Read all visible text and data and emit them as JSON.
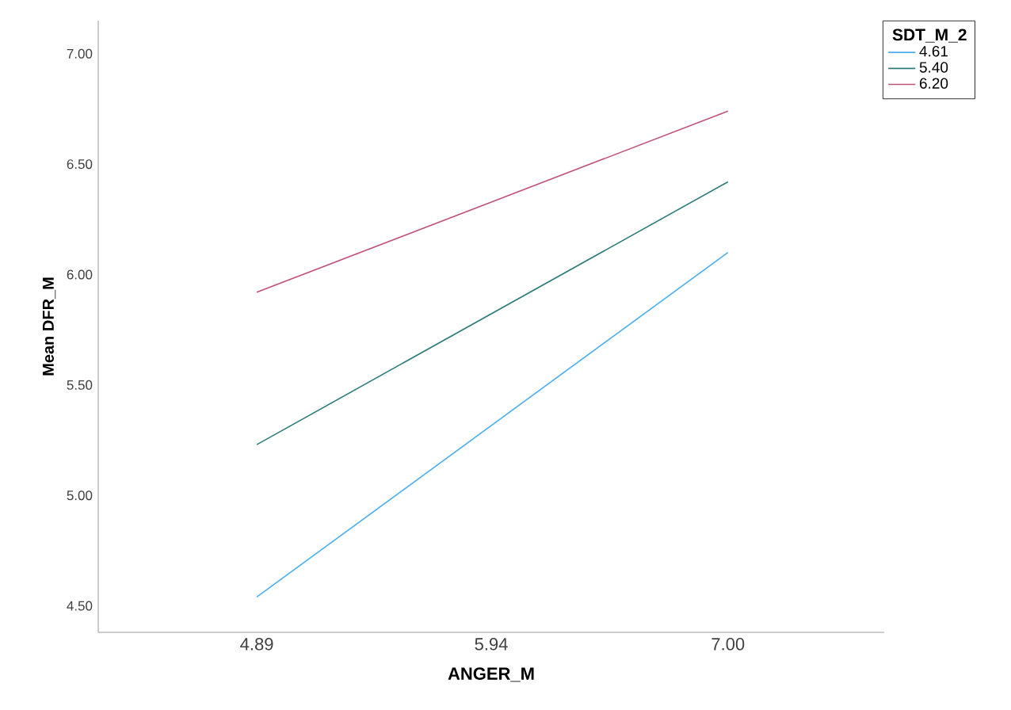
{
  "chart_data": {
    "type": "line",
    "xlabel": "ANGER_M",
    "ylabel": "Mean DFR_M",
    "legend_title": "SDT_M_2",
    "legend": "top right",
    "grid": false,
    "line_style": "solid",
    "x": [
      4.89,
      7.0
    ],
    "xlim": [
      4.18,
      7.7
    ],
    "xticks": [
      4.89,
      5.94,
      {
        "value": 7,
        "label": "7.00"
      }
    ],
    "ylim": [
      4.38,
      7.15
    ],
    "yticks": [
      {
        "value": 4.5,
        "label": "4.50"
      },
      {
        "value": 5,
        "label": "5.00"
      },
      {
        "value": 5.5,
        "label": "5.50"
      },
      {
        "value": 6,
        "label": "6.00"
      },
      {
        "value": 6.5,
        "label": "6.50"
      },
      {
        "value": 7,
        "label": "7.00"
      }
    ],
    "series": [
      {
        "name": "4.61",
        "color": "#4aaeee",
        "values": [
          4.54,
          6.1
        ]
      },
      {
        "name": "5.40",
        "color": "#2e7d7a",
        "values": [
          5.23,
          6.42
        ]
      },
      {
        "name": "6.20",
        "color": "#c0507a",
        "values": [
          5.92,
          6.74
        ]
      }
    ]
  }
}
